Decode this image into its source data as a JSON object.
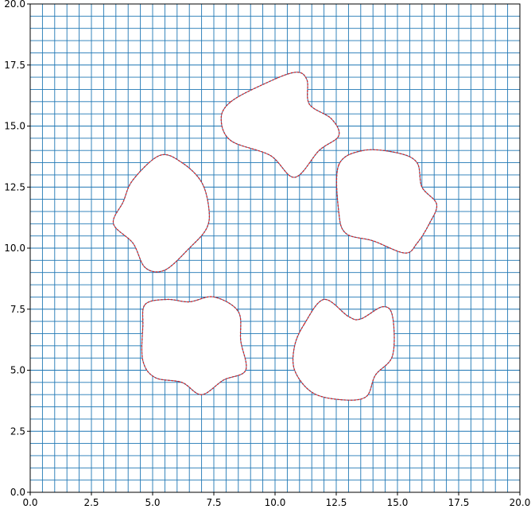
{
  "chart_data": {
    "type": "scatter",
    "title": "",
    "xlabel": "",
    "ylabel": "",
    "xlim": [
      0,
      20
    ],
    "ylim": [
      0,
      20
    ],
    "xticks": [
      0.0,
      2.5,
      5.0,
      7.5,
      10.0,
      12.5,
      15.0,
      17.5,
      20.0
    ],
    "yticks": [
      0.0,
      2.5,
      5.0,
      7.5,
      10.0,
      12.5,
      15.0,
      17.5,
      20.0
    ],
    "xtick_labels": [
      "0.0",
      "2.5",
      "5.0",
      "7.5",
      "10.0",
      "12.5",
      "15.0",
      "17.5",
      "20.0"
    ],
    "ytick_labels": [
      "0.0",
      "2.5",
      "5.0",
      "7.5",
      "10.0",
      "12.5",
      "15.0",
      "17.5",
      "20.0"
    ],
    "grid": {
      "spacing": 0.5,
      "color": "#1f77b4",
      "description": "structured mesh lines with holes around five lobed obstacles"
    },
    "boundary_color": "#d62728",
    "boundary_marker": "point",
    "obstacles": [
      {
        "name": "obstacle-1",
        "center": [
          10.2,
          15.3
        ],
        "outline": [
          [
            8.2,
            16.0
          ],
          [
            9.5,
            16.7
          ],
          [
            10.8,
            17.2
          ],
          [
            11.3,
            16.9
          ],
          [
            11.4,
            15.9
          ],
          [
            12.3,
            15.3
          ],
          [
            12.6,
            14.6
          ],
          [
            11.8,
            14.0
          ],
          [
            10.8,
            12.9
          ],
          [
            9.8,
            13.8
          ],
          [
            8.2,
            14.4
          ],
          [
            7.8,
            15.3
          ]
        ]
      },
      {
        "name": "obstacle-2",
        "center": [
          5.6,
          11.4
        ],
        "outline": [
          [
            4.2,
            12.8
          ],
          [
            5.3,
            13.8
          ],
          [
            6.2,
            13.5
          ],
          [
            7.0,
            12.7
          ],
          [
            7.3,
            11.6
          ],
          [
            7.2,
            10.8
          ],
          [
            6.5,
            10.0
          ],
          [
            5.5,
            9.1
          ],
          [
            4.7,
            9.2
          ],
          [
            4.2,
            10.2
          ],
          [
            3.4,
            11.0
          ],
          [
            3.8,
            11.9
          ]
        ]
      },
      {
        "name": "obstacle-3",
        "center": [
          14.8,
          12.0
        ],
        "outline": [
          [
            12.6,
            13.4
          ],
          [
            13.6,
            14.0
          ],
          [
            15.0,
            13.9
          ],
          [
            15.8,
            13.5
          ],
          [
            16.0,
            12.5
          ],
          [
            16.6,
            11.8
          ],
          [
            16.3,
            11.0
          ],
          [
            15.8,
            10.2
          ],
          [
            15.3,
            9.8
          ],
          [
            14.0,
            10.3
          ],
          [
            12.9,
            10.6
          ],
          [
            12.6,
            11.5
          ]
        ]
      },
      {
        "name": "obstacle-4",
        "center": [
          6.5,
          6.0
        ],
        "outline": [
          [
            4.7,
            7.7
          ],
          [
            5.6,
            7.9
          ],
          [
            6.5,
            7.8
          ],
          [
            7.5,
            8.0
          ],
          [
            8.5,
            7.4
          ],
          [
            8.6,
            6.2
          ],
          [
            8.8,
            5.0
          ],
          [
            7.9,
            4.6
          ],
          [
            7.0,
            4.0
          ],
          [
            6.2,
            4.5
          ],
          [
            5.1,
            4.7
          ],
          [
            4.6,
            5.4
          ],
          [
            4.6,
            6.8
          ]
        ]
      },
      {
        "name": "obstacle-5",
        "center": [
          13.1,
          5.8
        ],
        "outline": [
          [
            11.2,
            6.9
          ],
          [
            12.0,
            7.9
          ],
          [
            13.0,
            7.2
          ],
          [
            13.5,
            7.1
          ],
          [
            14.4,
            7.6
          ],
          [
            14.8,
            7.2
          ],
          [
            14.8,
            5.6
          ],
          [
            14.1,
            4.8
          ],
          [
            13.7,
            3.9
          ],
          [
            12.6,
            3.8
          ],
          [
            11.5,
            4.1
          ],
          [
            10.8,
            5.0
          ],
          [
            10.8,
            6.0
          ]
        ]
      }
    ]
  }
}
